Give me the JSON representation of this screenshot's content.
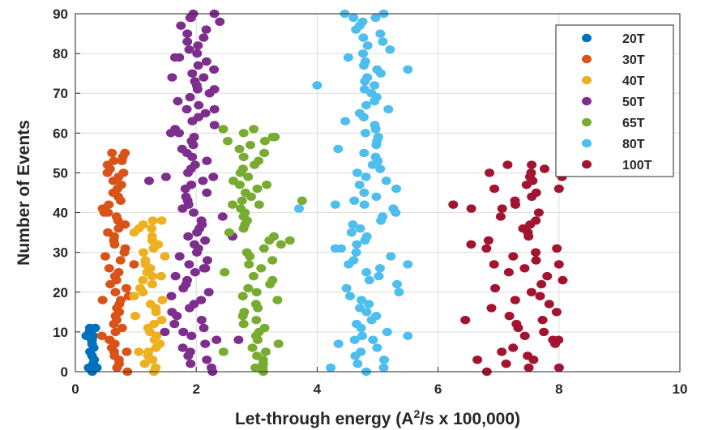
{
  "chart_data": {
    "type": "scatter",
    "xlabel": "Let-through energy (A",
    "xlabel_sup": "2",
    "xlabel_tail": "/s x 100,000)",
    "ylabel": "Number of Events",
    "xlim": [
      0,
      10
    ],
    "ylim": [
      0,
      90
    ],
    "xticks": [
      "0",
      "2",
      "4",
      "6",
      "8",
      "10"
    ],
    "yticks": [
      "0",
      "10",
      "20",
      "30",
      "40",
      "50",
      "60",
      "70",
      "80",
      "90"
    ],
    "grid": true,
    "legend_position": "top-right",
    "series": [
      {
        "name": "20T",
        "color": "#0072BD",
        "x_center": 0.27,
        "x_spread": 0.05,
        "y_max": 11,
        "points": [
          [
            0.18,
            9
          ],
          [
            0.24,
            10
          ],
          [
            0.33,
            11
          ],
          [
            0.27,
            8
          ],
          [
            0.22,
            1
          ]
        ]
      },
      {
        "name": "30T",
        "color": "#D95319",
        "x_center": 0.68,
        "x_spread": 0.13,
        "y_max": 55,
        "points": [
          [
            0.48,
            40
          ],
          [
            0.82,
            55
          ],
          [
            0.77,
            53
          ],
          [
            0.53,
            50
          ],
          [
            0.45,
            18
          ],
          [
            0.85,
            5
          ],
          [
            0.57,
            8
          ]
        ]
      },
      {
        "name": "40T",
        "color": "#EDB120",
        "x_center": 1.22,
        "x_spread": 0.12,
        "y_max": 38,
        "points": [
          [
            1.05,
            36
          ],
          [
            1.28,
            38
          ],
          [
            1.42,
            24
          ],
          [
            1.05,
            5
          ],
          [
            1.33,
            1
          ]
        ]
      },
      {
        "name": "50T",
        "color": "#7E2F8E",
        "x_center": 1.98,
        "x_spread": 0.17,
        "y_max": 90,
        "points": [
          [
            1.9,
            89
          ],
          [
            1.95,
            90
          ],
          [
            1.72,
            79
          ],
          [
            1.6,
            74
          ],
          [
            2.3,
            71
          ],
          [
            2.3,
            66
          ],
          [
            1.58,
            60
          ],
          [
            1.22,
            48
          ],
          [
            1.5,
            49
          ],
          [
            2.6,
            34
          ],
          [
            2.7,
            8
          ],
          [
            1.48,
            10
          ],
          [
            2.15,
            26
          ]
        ]
      },
      {
        "name": "65T",
        "color": "#77AC30",
        "x_center": 2.95,
        "x_spread": 0.2,
        "y_max": 61,
        "points": [
          [
            2.52,
            58
          ],
          [
            2.95,
            61
          ],
          [
            3.3,
            59
          ],
          [
            3.75,
            43
          ],
          [
            3.55,
            33
          ],
          [
            2.45,
            5
          ],
          [
            3.1,
            1
          ],
          [
            2.6,
            42
          ],
          [
            2.72,
            47
          ]
        ]
      },
      {
        "name": "80T",
        "color": "#4DBEEE",
        "x_center": 4.85,
        "x_spread": 0.22,
        "y_max": 90,
        "points": [
          [
            4,
            72
          ],
          [
            3.7,
            41
          ],
          [
            4.3,
            42
          ],
          [
            4.3,
            31
          ],
          [
            5.5,
            76
          ],
          [
            5.5,
            27
          ],
          [
            5.5,
            9
          ],
          [
            4.6,
            89
          ],
          [
            5.1,
            90
          ],
          [
            4.62,
            8
          ],
          [
            5.1,
            1
          ]
        ]
      },
      {
        "name": "100T",
        "color": "#A2142F",
        "x_center": 7.45,
        "x_spread": 0.35,
        "y_max": 52,
        "points": [
          [
            6.25,
            42
          ],
          [
            6.55,
            41
          ],
          [
            6.8,
            31
          ],
          [
            6.45,
            13
          ],
          [
            6.65,
            3
          ],
          [
            8.05,
            49
          ],
          [
            8.0,
            46
          ],
          [
            8.0,
            27
          ],
          [
            7.9,
            8
          ],
          [
            7.5,
            1
          ],
          [
            7.15,
            52
          ],
          [
            6.85,
            50
          ]
        ]
      }
    ]
  }
}
